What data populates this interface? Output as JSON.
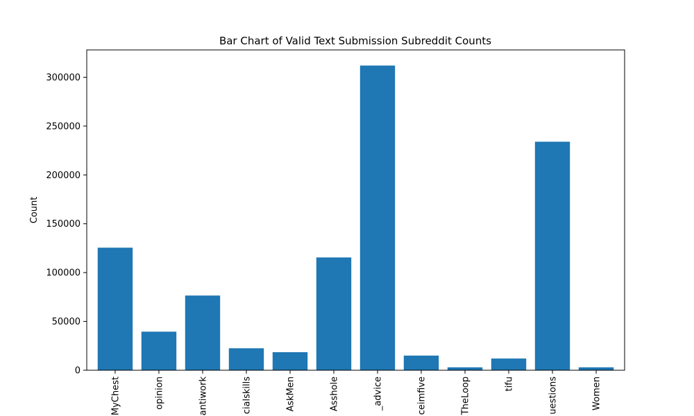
{
  "chart_data": {
    "type": "bar",
    "title": "Bar Chart of Valid Text Submission Subreddit Counts",
    "xlabel": "",
    "ylabel": "Count",
    "categories": [
      "MyChest",
      "opinion",
      "antiwork",
      "cialskills",
      "AskMen",
      "Asshole",
      "_advice",
      "ceimfive",
      "TheLoop",
      "tifu",
      "uestions",
      "Women"
    ],
    "values": [
      125500,
      39500,
      76500,
      22500,
      18500,
      115500,
      312000,
      15000,
      3000,
      12000,
      234000,
      3000
    ],
    "ylim": [
      0,
      328000
    ],
    "yticks": [
      0,
      50000,
      100000,
      150000,
      200000,
      250000,
      300000
    ],
    "grid": false,
    "colors": {
      "bar": "#1f77b4"
    }
  }
}
